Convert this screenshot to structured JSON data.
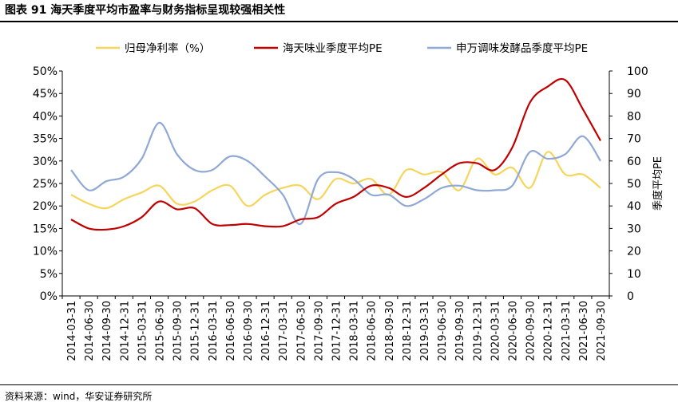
{
  "figure": {
    "title": "图表 91 海天季度平均市盈率与财务指标呈现较强相关性",
    "source": "资料来源：wind，华安证券研究所"
  },
  "chart_data": {
    "type": "line",
    "categories": [
      "2014-03-31",
      "2014-06-30",
      "2014-09-30",
      "2014-12-31",
      "2015-03-31",
      "2015-06-30",
      "2015-09-30",
      "2015-12-31",
      "2016-03-31",
      "2016-06-30",
      "2016-09-30",
      "2016-12-31",
      "2017-03-31",
      "2017-06-30",
      "2017-09-30",
      "2017-12-31",
      "2018-03-31",
      "2018-06-30",
      "2018-09-30",
      "2018-12-31",
      "2019-03-31",
      "2019-06-30",
      "2019-09-30",
      "2019-12-31",
      "2020-03-31",
      "2020-06-30",
      "2020-09-30",
      "2020-12-31",
      "2021-03-31",
      "2021-06-30",
      "2021-09-30"
    ],
    "left_axis": {
      "ticks": [
        "0%",
        "5%",
        "10%",
        "15%",
        "20%",
        "25%",
        "30%",
        "35%",
        "40%",
        "45%",
        "50%"
      ],
      "min": 0,
      "max": 50
    },
    "right_axis": {
      "label": "季度平均PE",
      "ticks": [
        "0",
        "10",
        "20",
        "30",
        "40",
        "50",
        "60",
        "70",
        "80",
        "90",
        "100"
      ],
      "min": 0,
      "max": 100
    },
    "legend_position": "top",
    "series": [
      {
        "name": "归母净利率（%）",
        "axis": "left",
        "color": "#F5D55C",
        "values": [
          22.5,
          20.5,
          19.5,
          21.5,
          23,
          24.5,
          20.5,
          21,
          23.5,
          24.5,
          20,
          22.5,
          24,
          24.5,
          21.5,
          26,
          25,
          26,
          22.5,
          28,
          27,
          27.5,
          23.5,
          30.5,
          27,
          28.5,
          24,
          32,
          27,
          27,
          24
        ]
      },
      {
        "name": "海天味业季度平均PE",
        "axis": "right",
        "color": "#C00000",
        "values": [
          34,
          30,
          29.5,
          31,
          35,
          42,
          38.5,
          39,
          32,
          31.5,
          32,
          31,
          31,
          34,
          35,
          41,
          44,
          49,
          48,
          44,
          48,
          54,
          59,
          59,
          56,
          66,
          86,
          93,
          96,
          83,
          69
        ]
      },
      {
        "name": "申万调味发酵品季度平均PE",
        "axis": "right",
        "color": "#8FA8D4",
        "values": [
          56,
          47,
          51,
          53,
          61,
          77,
          63,
          56,
          56,
          62,
          60,
          53,
          45,
          32,
          52,
          55,
          52,
          45,
          45,
          40,
          43,
          48,
          49,
          47,
          47,
          49,
          64,
          61,
          63,
          71,
          60
        ]
      }
    ]
  }
}
